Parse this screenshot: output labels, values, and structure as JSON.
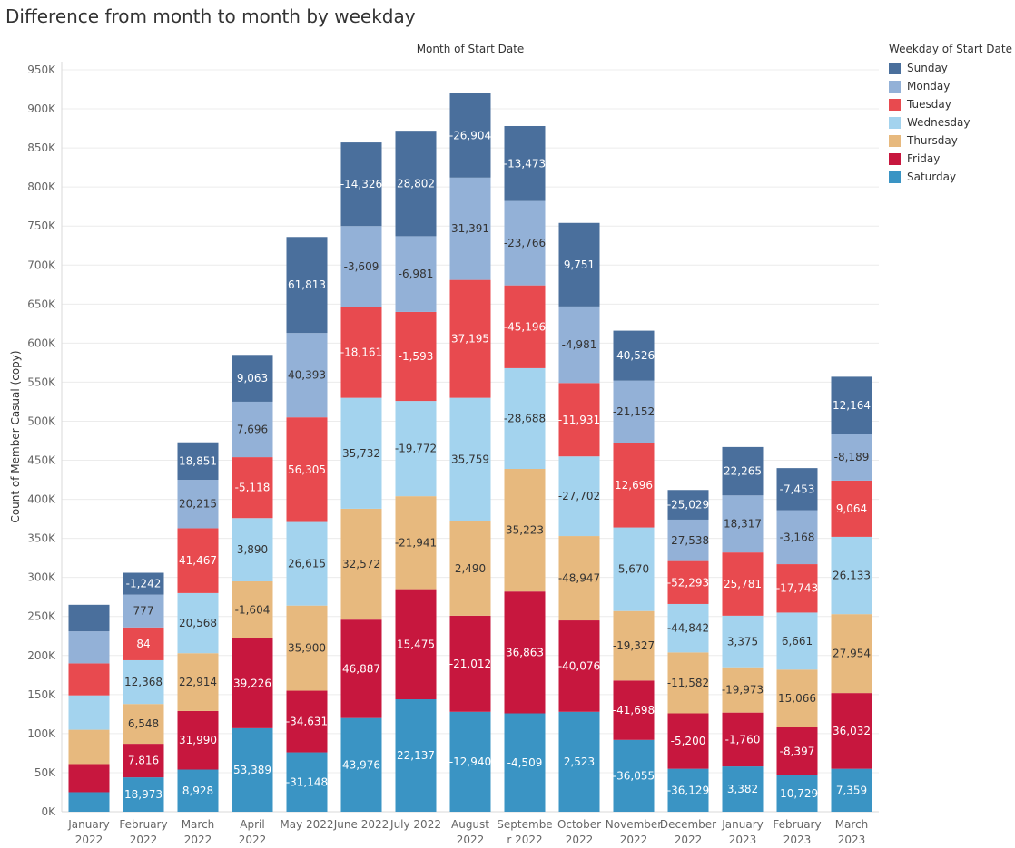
{
  "title": "Difference from month to month by weekday",
  "legend": {
    "title": "Weekday of Start Date",
    "items": [
      {
        "label": "Sunday",
        "color": "#4a6f9c"
      },
      {
        "label": "Monday",
        "color": "#93b1d7"
      },
      {
        "label": "Tuesday",
        "color": "#e84a4f"
      },
      {
        "label": "Wednesday",
        "color": "#a3d3ee"
      },
      {
        "label": "Thursday",
        "color": "#e7b97e"
      },
      {
        "label": "Friday",
        "color": "#c7173e"
      },
      {
        "label": "Saturday",
        "color": "#3a94c4"
      }
    ]
  },
  "chart_data": {
    "type": "bar",
    "stacked": true,
    "title": "Difference from month to month by weekday",
    "xlabel": "Month of Start Date",
    "ylabel": "Count of Member Casual (copy)",
    "ylim": [
      0,
      950000
    ],
    "y_ticks": [
      0,
      50000,
      100000,
      150000,
      200000,
      250000,
      300000,
      350000,
      400000,
      450000,
      500000,
      550000,
      600000,
      650000,
      700000,
      750000,
      800000,
      850000,
      900000,
      950000
    ],
    "y_tick_labels": [
      "0K",
      "50K",
      "100K",
      "150K",
      "200K",
      "250K",
      "300K",
      "350K",
      "400K",
      "450K",
      "500K",
      "550K",
      "600K",
      "650K",
      "700K",
      "750K",
      "800K",
      "850K",
      "900K",
      "950K"
    ],
    "grid": true,
    "legend_position": "right",
    "categories": [
      [
        "January",
        "2022"
      ],
      [
        "February",
        "2022"
      ],
      [
        "March",
        "2022"
      ],
      [
        "April",
        "2022"
      ],
      [
        "May 2022"
      ],
      [
        "June 2022"
      ],
      [
        "July 2022"
      ],
      [
        "August",
        "2022"
      ],
      [
        "Septembe",
        "r 2022"
      ],
      [
        "October",
        "2022"
      ],
      [
        "November",
        "2022"
      ],
      [
        "December",
        "2022"
      ],
      [
        "January",
        "2023"
      ],
      [
        "February",
        "2023"
      ],
      [
        "March",
        "2023"
      ]
    ],
    "series": [
      {
        "name": "Saturday",
        "color": "#3a94c4",
        "values": [
          25000,
          44000,
          54000,
          107000,
          76000,
          120000,
          144000,
          128000,
          126000,
          128000,
          92000,
          55000,
          58000,
          47000,
          55000
        ],
        "labels": [
          "",
          "18,973",
          "8,928",
          "53,389",
          "-31,148",
          "43,976",
          "22,137",
          "-12,940",
          "-4,509",
          "2,523",
          "-36,055",
          "-36,129",
          "3,382",
          "-10,729",
          "7,359"
        ]
      },
      {
        "name": "Friday",
        "color": "#c7173e",
        "values": [
          36000,
          43000,
          75000,
          115000,
          79000,
          126000,
          141000,
          123000,
          156000,
          117000,
          76000,
          71000,
          69000,
          61000,
          97000
        ],
        "labels": [
          "",
          "7,816",
          "31,990",
          "39,226",
          "-34,631",
          "46,887",
          "15,475",
          "-21,012",
          "36,863",
          "-40,076",
          "-41,698",
          "-5,200",
          "-1,760",
          "-8,397",
          "36,032"
        ]
      },
      {
        "name": "Thursday",
        "color": "#e7b97e",
        "values": [
          44000,
          51000,
          74000,
          73000,
          109000,
          142000,
          119000,
          121000,
          157000,
          108000,
          89000,
          78000,
          58000,
          74000,
          101000
        ],
        "labels": [
          "",
          "6,548",
          "22,914",
          "-1,604",
          "35,900",
          "32,572",
          "-21,941",
          "2,490",
          "35,223",
          "-48,947",
          "-19,327",
          "-11,582",
          "-19,973",
          "15,066",
          "27,954"
        ]
      },
      {
        "name": "Wednesday",
        "color": "#a3d3ee",
        "values": [
          44000,
          56000,
          77000,
          81000,
          107000,
          142000,
          122000,
          158000,
          129000,
          102000,
          107000,
          62000,
          66000,
          73000,
          99000
        ],
        "labels": [
          "",
          "12,368",
          "20,568",
          "3,890",
          "26,615",
          "35,732",
          "-19,772",
          "35,759",
          "-28,688",
          "-27,702",
          "5,670",
          "-44,842",
          "3,375",
          "6,661",
          "26,133"
        ]
      },
      {
        "name": "Tuesday",
        "color": "#e84a4f",
        "values": [
          41000,
          42000,
          83000,
          78000,
          134000,
          116000,
          114000,
          151000,
          106000,
          94000,
          108000,
          55000,
          81000,
          62000,
          72000
        ],
        "labels": [
          "",
          "84",
          "41,467",
          "-5,118",
          "56,305",
          "-18,161",
          "-1,593",
          "37,195",
          "-45,196",
          "-11,931",
          "12,696",
          "-52,293",
          "25,781",
          "-17,743",
          "9,064"
        ]
      },
      {
        "name": "Monday",
        "color": "#93b1d7",
        "values": [
          41000,
          42000,
          62000,
          71000,
          108000,
          104000,
          97000,
          131000,
          108000,
          98000,
          80000,
          53000,
          73000,
          69000,
          60000
        ],
        "labels": [
          "",
          "777",
          "20,215",
          "7,696",
          "40,393",
          "-3,609",
          "-6,981",
          "31,391",
          "-23,766",
          "-4,981",
          "-21,152",
          "-27,538",
          "18,317",
          "-3,168",
          "-8,189"
        ]
      },
      {
        "name": "Sunday",
        "color": "#4a6f9c",
        "values": [
          34000,
          28000,
          48000,
          60000,
          123000,
          107000,
          135000,
          108000,
          96000,
          107000,
          64000,
          38000,
          62000,
          54000,
          73000
        ],
        "labels": [
          "",
          "-1,242",
          "18,851",
          "9,063",
          "61,813",
          "-14,326",
          "28,802",
          "-26,904",
          "-13,473",
          "9,751",
          "-40,526",
          "-25,029",
          "22,265",
          "-7,453",
          "12,164"
        ]
      }
    ]
  }
}
